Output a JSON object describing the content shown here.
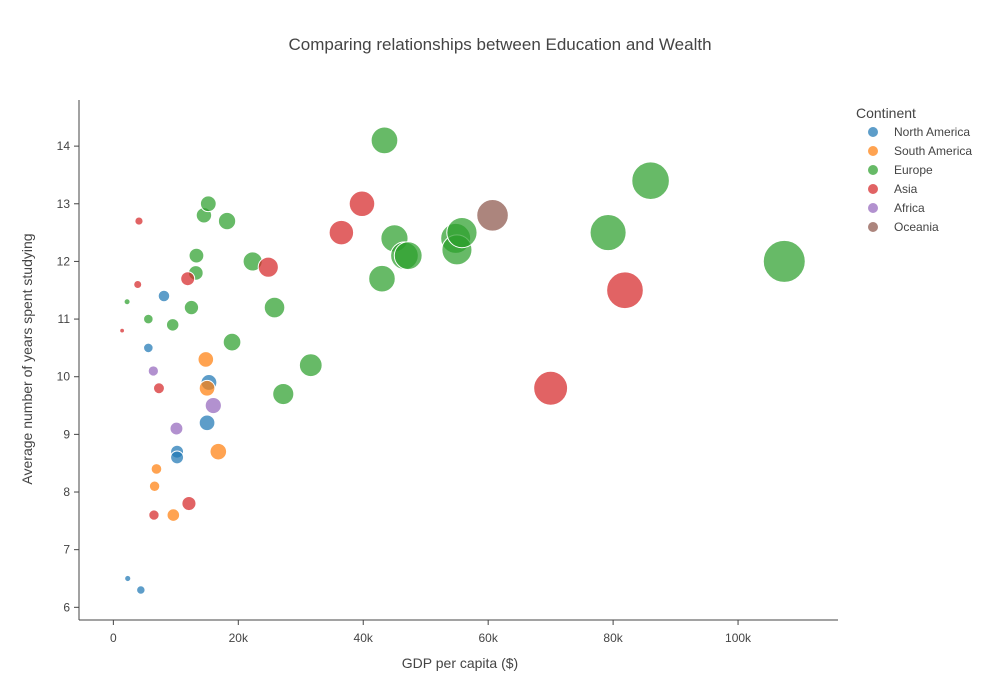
{
  "chart_data": {
    "type": "scatter",
    "title": "Comparing relationships between Education and Wealth",
    "xlabel": "GDP per capita ($)",
    "ylabel": "Average number of years spent studying",
    "xlim": [
      -5500,
      116000
    ],
    "ylim": [
      5.78,
      14.8
    ],
    "x_ticks": [
      0,
      20000,
      40000,
      60000,
      80000,
      100000
    ],
    "x_tick_labels": [
      "0",
      "20k",
      "40k",
      "60k",
      "80k",
      "100k"
    ],
    "y_ticks": [
      6,
      7,
      8,
      9,
      10,
      11,
      12,
      13,
      14
    ],
    "y_tick_labels": [
      "6",
      "7",
      "8",
      "9",
      "10",
      "11",
      "12",
      "13",
      "14"
    ],
    "grid": false,
    "legend_title": "Continent",
    "legend_position": "top-right",
    "marker_size": "GDP per capita",
    "series": [
      {
        "name": "North America",
        "color": "#1f77b4",
        "points": [
          [
            2300,
            6.5
          ],
          [
            4400,
            6.3
          ],
          [
            5600,
            10.5
          ],
          [
            8100,
            11.4
          ],
          [
            10200,
            8.7
          ],
          [
            10200,
            8.6
          ],
          [
            15000,
            9.2
          ],
          [
            15300,
            9.9
          ]
        ]
      },
      {
        "name": "South America",
        "color": "#ff7f0e",
        "points": [
          [
            6600,
            8.1
          ],
          [
            6900,
            8.4
          ],
          [
            9600,
            7.6
          ],
          [
            14800,
            10.3
          ],
          [
            15000,
            9.8
          ],
          [
            16800,
            8.7
          ]
        ]
      },
      {
        "name": "Europe",
        "color": "#2ca02c",
        "points": [
          [
            2200,
            11.3
          ],
          [
            5600,
            11.0
          ],
          [
            9500,
            10.9
          ],
          [
            12500,
            11.2
          ],
          [
            13200,
            11.8
          ],
          [
            13300,
            12.1
          ],
          [
            14500,
            12.8
          ],
          [
            15200,
            13.0
          ],
          [
            18200,
            12.7
          ],
          [
            19000,
            10.6
          ],
          [
            22300,
            12.0
          ],
          [
            25800,
            11.2
          ],
          [
            27200,
            9.7
          ],
          [
            31600,
            10.2
          ],
          [
            43000,
            11.7
          ],
          [
            43400,
            14.1
          ],
          [
            45000,
            12.4
          ],
          [
            46600,
            12.1
          ],
          [
            47200,
            12.1
          ],
          [
            54800,
            12.4
          ],
          [
            55000,
            12.2
          ],
          [
            55800,
            12.5
          ],
          [
            79200,
            12.5
          ],
          [
            86000,
            13.4
          ],
          [
            107400,
            12.0
          ]
        ]
      },
      {
        "name": "Asia",
        "color": "#d62728",
        "points": [
          [
            1400,
            10.8
          ],
          [
            3900,
            11.6
          ],
          [
            4100,
            12.7
          ],
          [
            6500,
            7.6
          ],
          [
            7300,
            9.8
          ],
          [
            11900,
            11.7
          ],
          [
            12100,
            7.8
          ],
          [
            24800,
            11.9
          ],
          [
            36500,
            12.5
          ],
          [
            39800,
            13.0
          ],
          [
            70000,
            9.8
          ],
          [
            81900,
            11.5
          ]
        ]
      },
      {
        "name": "Africa",
        "color": "#9467bd",
        "points": [
          [
            6400,
            10.1
          ],
          [
            10100,
            9.1
          ],
          [
            16000,
            9.5
          ]
        ]
      },
      {
        "name": "Oceania",
        "color": "#8c564b",
        "points": [
          [
            60700,
            12.8
          ]
        ]
      }
    ]
  }
}
